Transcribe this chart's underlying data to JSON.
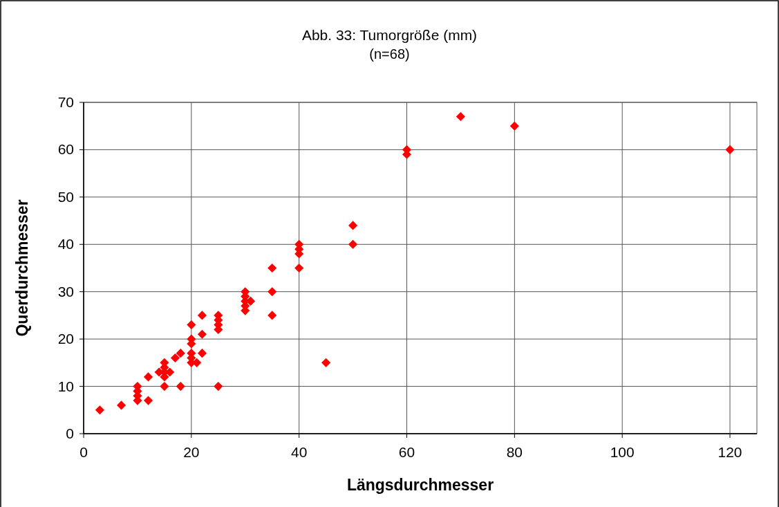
{
  "chart_data": {
    "type": "scatter",
    "title": "Abb. 33: Tumorgröße (mm)",
    "subtitle": "(n=68)",
    "xlabel": "Längsdurchmesser",
    "ylabel": "Querdurchmesser",
    "series": [
      {
        "color": "#ff0000",
        "x": [
          3,
          7,
          10,
          10,
          10,
          10,
          12,
          12,
          14,
          15,
          15,
          15,
          15,
          16,
          15,
          17,
          18,
          18,
          20,
          20,
          20,
          20,
          20,
          20,
          21,
          22,
          22,
          22,
          25,
          25,
          25,
          25,
          25,
          30,
          30,
          30,
          30,
          30,
          31,
          35,
          35,
          35,
          40,
          40,
          40,
          40,
          45,
          50,
          50,
          60,
          60,
          70,
          80,
          120
        ],
        "values": [
          5,
          6,
          10,
          9,
          8,
          7,
          12,
          7,
          13,
          15,
          14,
          13,
          12,
          13,
          10,
          16,
          17,
          10,
          23,
          20,
          19,
          17,
          16,
          15,
          15,
          25,
          21,
          17,
          25,
          24,
          23,
          22,
          10,
          30,
          29,
          28,
          27,
          26,
          28,
          35,
          30,
          25,
          40,
          39,
          38,
          35,
          15,
          44,
          40,
          60,
          59,
          67,
          65,
          60
        ]
      }
    ],
    "xlim": [
      0,
      125
    ],
    "xticks": [
      0,
      20,
      40,
      60,
      80,
      100,
      120
    ],
    "ylim": [
      0,
      70
    ],
    "yticks": [
      0,
      10,
      20,
      30,
      40,
      50,
      60,
      70
    ],
    "grid": true,
    "marker": "diamond"
  }
}
